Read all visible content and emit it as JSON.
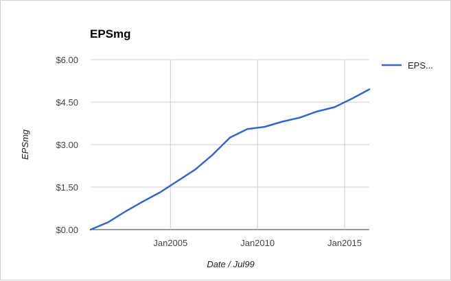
{
  "chart_data": {
    "type": "line",
    "title": "EPSmg",
    "xlabel": "Date / Jul99",
    "ylabel": "EPSmg",
    "x_ticks": [
      "Jan2005",
      "Jan2010",
      "Jan2015"
    ],
    "y_ticks": [
      "$0.00",
      "$1.50",
      "$3.00",
      "$4.50",
      "$6.00"
    ],
    "xlim": [
      "2000-06",
      "2016-06"
    ],
    "ylim": [
      0,
      6
    ],
    "grid": true,
    "legend": "right",
    "series": [
      {
        "name": "EPS...",
        "color": "#3366cc",
        "x": [
          "2000-06",
          "2001-06",
          "2002-06",
          "2003-06",
          "2004-06",
          "2005-06",
          "2006-06",
          "2007-06",
          "2008-06",
          "2009-06",
          "2010-06",
          "2011-06",
          "2012-06",
          "2013-06",
          "2014-06",
          "2015-06",
          "2016-06"
        ],
        "values": [
          0.0,
          0.26,
          0.64,
          0.99,
          1.32,
          1.72,
          2.12,
          2.64,
          3.25,
          3.55,
          3.63,
          3.81,
          3.95,
          4.17,
          4.32,
          4.62,
          4.95
        ]
      }
    ]
  }
}
